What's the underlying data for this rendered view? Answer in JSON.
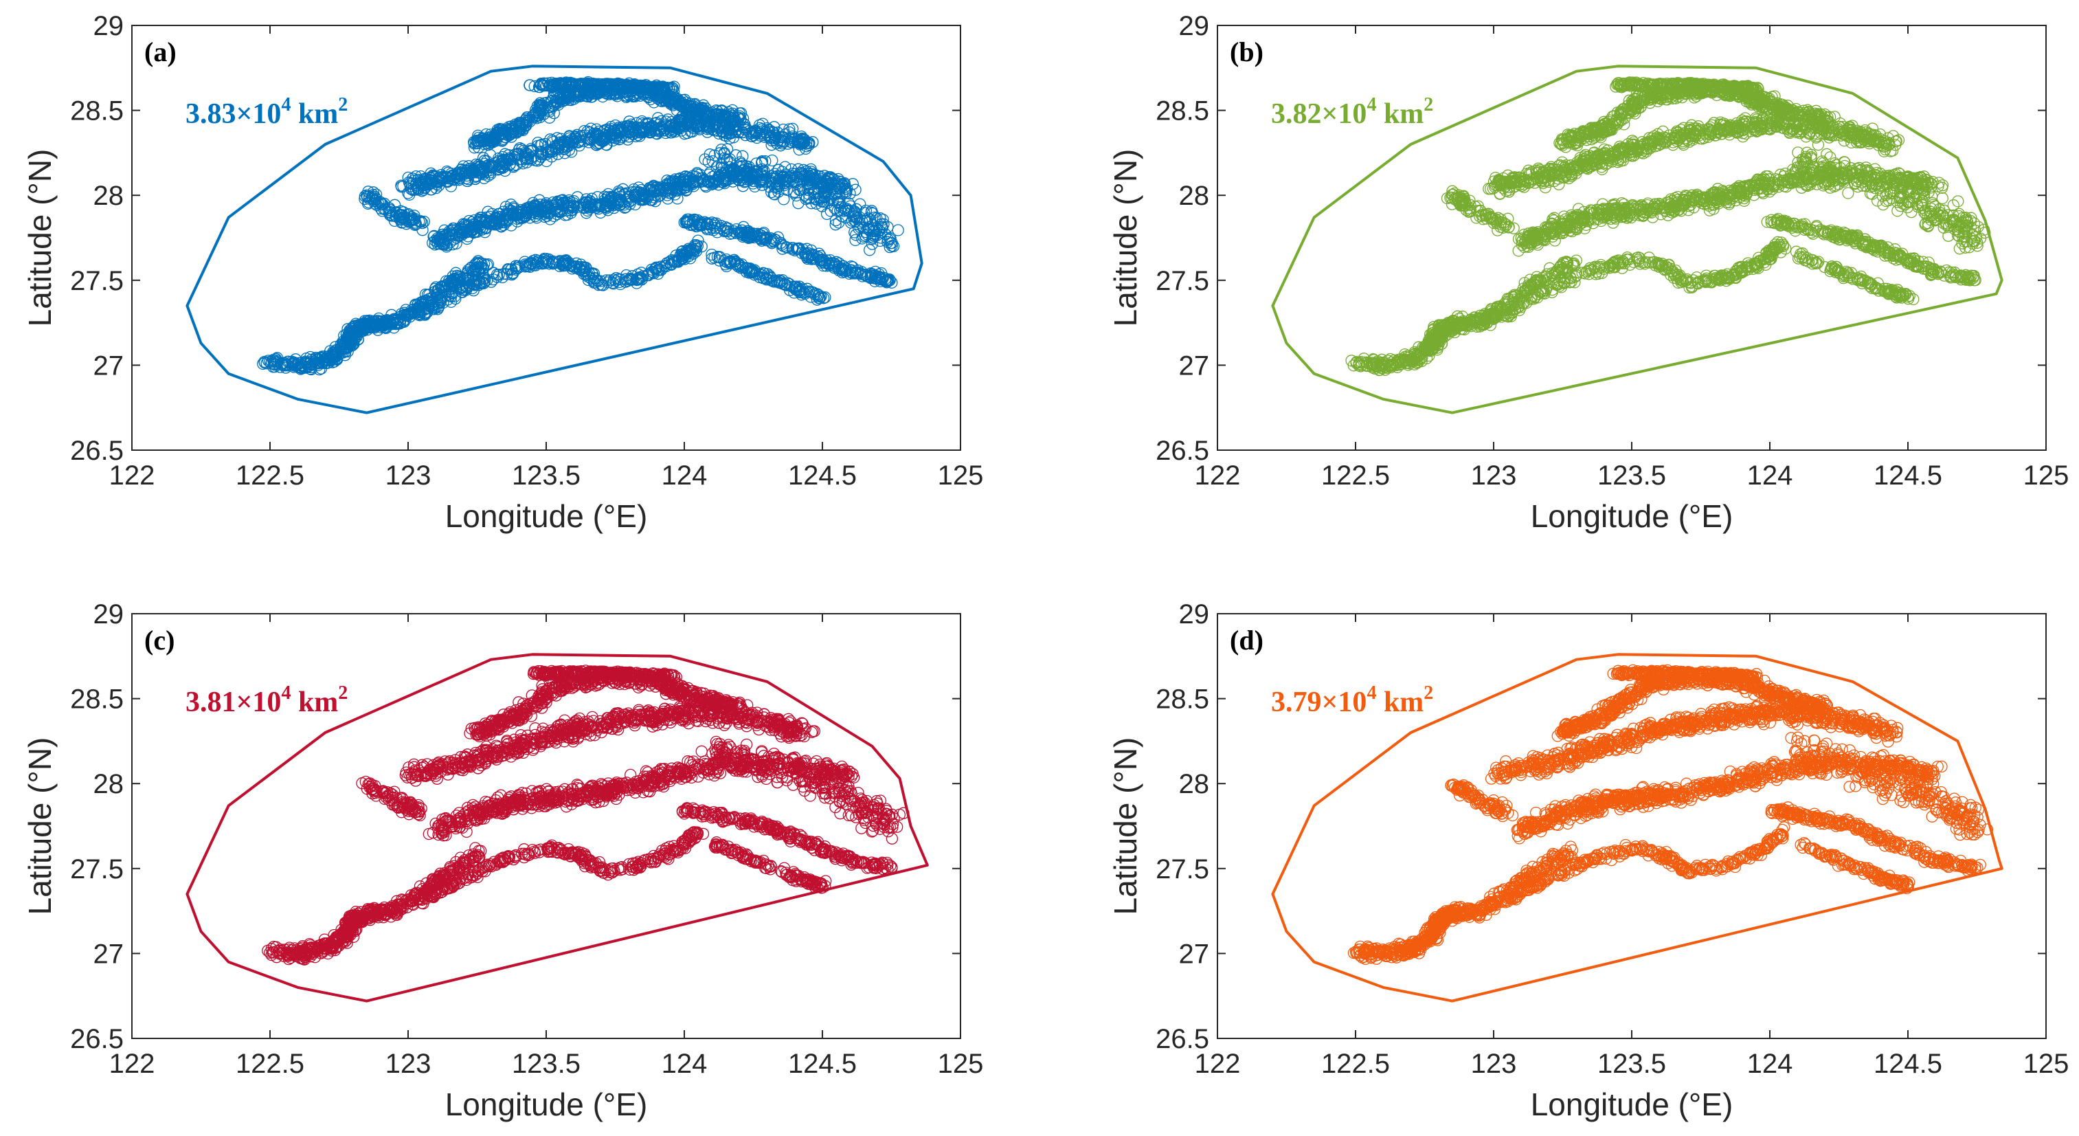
{
  "figure": {
    "panel_labels": [
      "(a)",
      "(b)",
      "(c)",
      "(d)"
    ]
  },
  "chart_data": [
    {
      "type": "scatter",
      "panel": "(a)",
      "color": "#0072BD",
      "area_value": "3.83",
      "area_text": "3.83 × 10⁴ km²",
      "xlabel": "Longitude (°E)",
      "ylabel": "Latitude (°N)",
      "xlim": [
        122,
        125
      ],
      "ylim": [
        26.5,
        29
      ],
      "xticks": [
        "122",
        "122.5",
        "123",
        "123.5",
        "124",
        "124.5",
        "125"
      ],
      "yticks": [
        "26.5",
        "27",
        "27.5",
        "28",
        "28.5",
        "29"
      ],
      "grid": false,
      "hull": [
        [
          122.2,
          27.35
        ],
        [
          122.25,
          27.13
        ],
        [
          122.35,
          26.95
        ],
        [
          122.6,
          26.8
        ],
        [
          122.85,
          26.72
        ],
        [
          124.83,
          27.45
        ],
        [
          124.86,
          27.6
        ],
        [
          124.82,
          28.0
        ],
        [
          124.72,
          28.2
        ],
        [
          124.3,
          28.6
        ],
        [
          123.95,
          28.75
        ],
        [
          123.45,
          28.76
        ],
        [
          123.3,
          28.73
        ],
        [
          122.7,
          28.3
        ],
        [
          122.35,
          27.87
        ]
      ]
    },
    {
      "type": "scatter",
      "panel": "(b)",
      "color": "#77AC30",
      "area_value": "3.82",
      "area_text": "3.82 × 10⁴ km²",
      "xlabel": "Longitude (°E)",
      "ylabel": "Latitude (°N)",
      "xlim": [
        122,
        125
      ],
      "ylim": [
        26.5,
        29
      ],
      "xticks": [
        "122",
        "122.5",
        "123",
        "123.5",
        "124",
        "124.5",
        "125"
      ],
      "yticks": [
        "26.5",
        "27",
        "27.5",
        "28",
        "28.5",
        "29"
      ],
      "grid": false,
      "hull": [
        [
          122.2,
          27.35
        ],
        [
          122.25,
          27.13
        ],
        [
          122.35,
          26.95
        ],
        [
          122.6,
          26.8
        ],
        [
          122.85,
          26.72
        ],
        [
          124.82,
          27.42
        ],
        [
          124.84,
          27.5
        ],
        [
          124.78,
          27.85
        ],
        [
          124.68,
          28.22
        ],
        [
          124.3,
          28.6
        ],
        [
          123.95,
          28.75
        ],
        [
          123.45,
          28.76
        ],
        [
          123.3,
          28.73
        ],
        [
          122.7,
          28.3
        ],
        [
          122.35,
          27.87
        ]
      ]
    },
    {
      "type": "scatter",
      "panel": "(c)",
      "color": "#C01030",
      "area_value": "3.81",
      "area_text": "3.81 × 10⁴ km²",
      "xlabel": "Longitude (°E)",
      "ylabel": "Latitude (°N)",
      "xlim": [
        122,
        125
      ],
      "ylim": [
        26.5,
        29
      ],
      "xticks": [
        "122",
        "122.5",
        "123",
        "123.5",
        "124",
        "124.5",
        "125"
      ],
      "yticks": [
        "26.5",
        "27",
        "27.5",
        "28",
        "28.5",
        "29"
      ],
      "grid": false,
      "hull": [
        [
          122.2,
          27.35
        ],
        [
          122.25,
          27.13
        ],
        [
          122.35,
          26.95
        ],
        [
          122.6,
          26.8
        ],
        [
          122.85,
          26.72
        ],
        [
          124.88,
          27.52
        ],
        [
          124.82,
          27.75
        ],
        [
          124.78,
          28.03
        ],
        [
          124.68,
          28.22
        ],
        [
          124.3,
          28.6
        ],
        [
          123.95,
          28.75
        ],
        [
          123.45,
          28.76
        ],
        [
          123.3,
          28.73
        ],
        [
          122.7,
          28.3
        ],
        [
          122.35,
          27.87
        ]
      ]
    },
    {
      "type": "scatter",
      "panel": "(d)",
      "color": "#F25C0F",
      "area_value": "3.79",
      "area_text": "3.79 × 10⁴ km²",
      "xlabel": "Longitude (°E)",
      "ylabel": "Latitude (°N)",
      "xlim": [
        122,
        125
      ],
      "ylim": [
        26.5,
        29
      ],
      "xticks": [
        "122",
        "122.5",
        "123",
        "123.5",
        "124",
        "124.5",
        "125"
      ],
      "yticks": [
        "26.5",
        "27",
        "27.5",
        "28",
        "28.5",
        "29"
      ],
      "grid": false,
      "hull": [
        [
          122.2,
          27.35
        ],
        [
          122.25,
          27.13
        ],
        [
          122.35,
          26.95
        ],
        [
          122.6,
          26.8
        ],
        [
          122.85,
          26.72
        ],
        [
          124.84,
          27.5
        ],
        [
          124.83,
          27.55
        ],
        [
          124.78,
          27.85
        ],
        [
          124.68,
          28.25
        ],
        [
          124.3,
          28.6
        ],
        [
          123.95,
          28.75
        ],
        [
          123.45,
          28.76
        ],
        [
          123.3,
          28.73
        ],
        [
          122.7,
          28.3
        ],
        [
          122.35,
          27.87
        ]
      ]
    }
  ]
}
